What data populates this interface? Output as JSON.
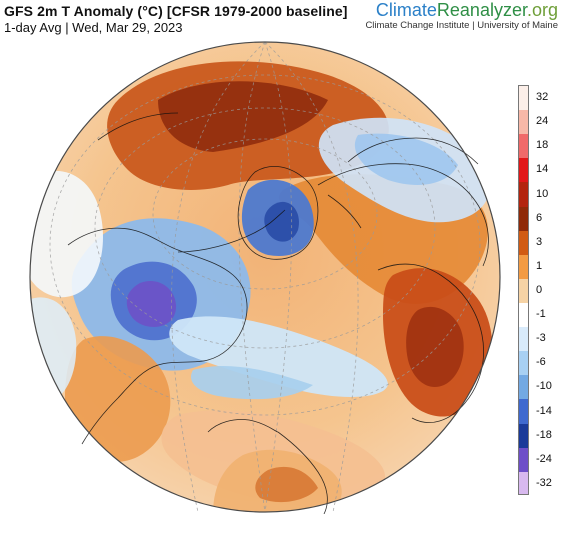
{
  "header": {
    "title": "GFS 2m T Anomaly (°C) [CFSR 1979-2000 baseline]",
    "subtitle": "1-day Avg | Wed, Mar 29, 2023"
  },
  "branding": {
    "part1": "Climate",
    "part2": "Reanalyzer",
    "part3": ".org",
    "affiliation": "Climate Change Institute | University of Maine"
  },
  "legend": {
    "labels": [
      "32",
      "24",
      "18",
      "14",
      "10",
      "6",
      "3",
      "1",
      "0",
      "-1",
      "-3",
      "-6",
      "-10",
      "-14",
      "-18",
      "-24",
      "-32"
    ],
    "colors": [
      "#fcefe9",
      "#f7b8a8",
      "#f06a6a",
      "#e21719",
      "#b3240e",
      "#8f2a08",
      "#d15b13",
      "#f39b43",
      "#f6d3a5",
      "#ffffff",
      "#d9ebfb",
      "#a8d0f3",
      "#73a9e3",
      "#3f69cf",
      "#1a3a99",
      "#6e4fc8",
      "#d8b9ef"
    ]
  }
}
